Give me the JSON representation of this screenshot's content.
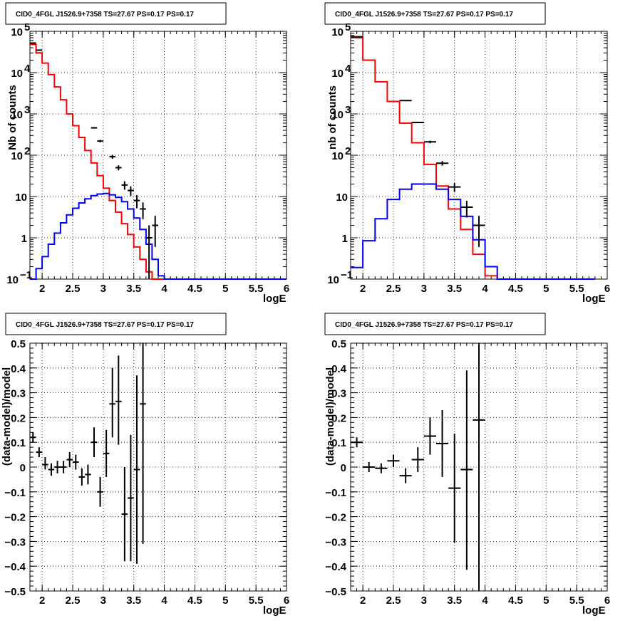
{
  "chart_data": [
    {
      "type": "line",
      "title": "CID0_4FGL J1526.9+7358 TS=27.67 PS=0.17 PS=0.17",
      "xlabel": "logE",
      "ylabel": "Nb of counts",
      "xlim": [
        1.8,
        6.0
      ],
      "ylim": [
        0.1,
        100000
      ],
      "yscale": "log",
      "grid": true,
      "x_ticks": [
        2,
        2.5,
        3,
        3.5,
        4,
        4.5,
        5,
        5.5,
        6
      ],
      "x_tick_labels": [
        "2",
        "2.5",
        "3",
        "3.5",
        "4",
        "4.5",
        "5",
        "5.5",
        "6"
      ],
      "y_ticks": [
        0.1,
        1,
        10,
        100,
        1000,
        10000,
        100000
      ],
      "y_tick_labels": [
        [
          "10",
          "−1"
        ],
        [
          "1",
          ""
        ],
        [
          "10",
          ""
        ],
        [
          "10",
          "2"
        ],
        [
          "10",
          "3"
        ],
        [
          "10",
          "4"
        ],
        [
          "10",
          "5"
        ]
      ],
      "bin_edges": [
        1.8,
        1.9,
        2.0,
        2.1,
        2.2,
        2.3,
        2.4,
        2.5,
        2.6,
        2.7,
        2.8,
        2.9,
        3.0,
        3.1,
        3.2,
        3.3,
        3.4,
        3.5,
        3.6,
        3.7,
        3.8,
        3.9,
        4.0,
        4.1,
        4.2,
        4.3,
        4.4,
        4.5,
        4.6,
        4.7,
        4.8,
        4.9,
        5.0,
        5.1,
        5.2,
        5.3,
        5.4,
        5.5,
        5.6,
        5.7,
        5.8,
        5.9,
        6.0
      ],
      "series": [
        {
          "kind": "model-total",
          "color": "#ff0000",
          "values": [
            48000,
            30000,
            17000,
            9000,
            4500,
            2200,
            1000,
            520,
            270,
            130,
            65,
            32,
            16,
            8,
            4.2,
            2.2,
            1.2,
            0.6,
            0.3,
            0.15,
            0.1,
            0.1,
            0.1,
            0.1,
            0.1,
            0.1,
            0.1,
            0.1,
            0.1,
            0.1,
            0.1,
            0.1,
            0.1,
            0.1,
            0.1,
            0.1,
            0.1,
            0.1,
            0.1,
            0.1,
            0.1,
            0.1
          ]
        },
        {
          "kind": "model-source",
          "color": "#0000ff",
          "values": [
            0.1,
            0.18,
            0.35,
            0.7,
            1.3,
            2.3,
            3.6,
            5.2,
            7.0,
            8.8,
            10.5,
            11.5,
            11.8,
            11,
            9.5,
            7.5,
            5.0,
            3.0,
            1.6,
            0.7,
            0.3,
            0.12,
            0.1,
            0.1,
            0.1,
            0.1,
            0.1,
            0.1,
            0.1,
            0.1,
            0.1,
            0.1,
            0.1,
            0.1,
            0.1,
            0.1,
            0.1,
            0.1,
            0.1,
            0.1,
            0.1,
            0.1
          ]
        },
        {
          "kind": "data",
          "color": "#000000",
          "points": [
            {
              "x": 1.85,
              "y": 52000,
              "err": 230
            },
            {
              "x": 1.95,
              "y": 35000,
              "err": 190
            },
            {
              "x": 2.85,
              "y": 460,
              "err": 21
            },
            {
              "x": 2.95,
              "y": 220,
              "err": 15
            },
            {
              "x": 3.15,
              "y": 92,
              "err": 10
            },
            {
              "x": 3.25,
              "y": 50,
              "err": 7
            },
            {
              "x": 3.35,
              "y": 19,
              "err": 4.4
            },
            {
              "x": 3.45,
              "y": 14,
              "err": 3.7
            },
            {
              "x": 3.55,
              "y": 8,
              "err": 2.8
            },
            {
              "x": 3.65,
              "y": 5,
              "err": 2.2
            },
            {
              "x": 3.75,
              "y": 1,
              "err": 1.0
            },
            {
              "x": 3.85,
              "y": 2,
              "err": 1.4
            }
          ]
        }
      ]
    },
    {
      "type": "line",
      "title": "CID0_4FGL J1526.9+7358 TS=27.67 PS=0.17 PS=0.17",
      "xlabel": "logE",
      "ylabel": "nb of counts",
      "xlim": [
        1.8,
        6.0
      ],
      "ylim": [
        0.1,
        100000
      ],
      "yscale": "log",
      "grid": true,
      "x_ticks": [
        2,
        2.5,
        3,
        3.5,
        4,
        4.5,
        5,
        5.5,
        6
      ],
      "x_tick_labels": [
        "2",
        "2.5",
        "3",
        "3.5",
        "4",
        "4.5",
        "5",
        "5.5",
        "6"
      ],
      "y_ticks": [
        0.1,
        1,
        10,
        100,
        1000,
        10000,
        100000
      ],
      "y_tick_labels": [
        [
          "10",
          "−1"
        ],
        [
          "1",
          ""
        ],
        [
          "10",
          ""
        ],
        [
          "10",
          "2"
        ],
        [
          "10",
          "3"
        ],
        [
          "10",
          "4"
        ],
        [
          "10",
          "5"
        ]
      ],
      "bin_edges": [
        1.8,
        2.0,
        2.2,
        2.4,
        2.6,
        2.8,
        3.0,
        3.2,
        3.4,
        3.6,
        3.8,
        4.0,
        4.2,
        4.4,
        4.6,
        4.8,
        5.0,
        5.2,
        5.4,
        5.6,
        5.8,
        6.0
      ],
      "series": [
        {
          "kind": "model-total",
          "color": "#ff0000",
          "values": [
            70000,
            20000,
            6000,
            2000,
            600,
            200,
            60,
            18,
            5,
            1.6,
            0.4,
            0.12,
            0.1,
            0.1,
            0.1,
            0.1,
            0.1,
            0.1,
            0.1,
            0.1
          ]
        },
        {
          "kind": "model-source",
          "color": "#0000ff",
          "values": [
            0.19,
            0.85,
            2.9,
            8.5,
            15,
            20,
            20,
            15,
            8.5,
            3.3,
            0.9,
            0.2,
            0.1,
            0.1,
            0.1,
            0.1,
            0.1,
            0.1,
            0.1,
            0.1
          ]
        },
        {
          "kind": "data",
          "color": "#000000",
          "points": [
            {
              "x": 1.9,
              "y": 74000,
              "err": 270
            },
            {
              "x": 2.7,
              "y": 2100,
              "err": 46
            },
            {
              "x": 2.9,
              "y": 620,
              "err": 25
            },
            {
              "x": 3.1,
              "y": 210,
              "err": 15
            },
            {
              "x": 3.3,
              "y": 64,
              "err": 8
            },
            {
              "x": 3.5,
              "y": 17,
              "err": 4.1
            },
            {
              "x": 3.7,
              "y": 5.5,
              "err": 2.4
            },
            {
              "x": 3.9,
              "y": 2,
              "err": 1.4
            }
          ]
        }
      ]
    },
    {
      "type": "scatter",
      "title": "CID0_4FGL J1526.9+7358 TS=27.67 PS=0.17 PS=0.17",
      "xlabel": "logE",
      "ylabel": "(data-model)/model",
      "xlim": [
        1.8,
        6.0
      ],
      "ylim": [
        -0.5,
        0.5
      ],
      "grid": true,
      "x_ticks": [
        2,
        2.5,
        3,
        3.5,
        4,
        4.5,
        5,
        5.5,
        6
      ],
      "x_tick_labels": [
        "2",
        "2.5",
        "3",
        "3.5",
        "4",
        "4.5",
        "5",
        "5.5",
        "6"
      ],
      "y_ticks": [
        -0.5,
        -0.4,
        -0.3,
        -0.2,
        -0.1,
        0,
        0.1,
        0.2,
        0.3,
        0.4,
        0.5
      ],
      "y_tick_labels": [
        "−0.5",
        "−0.4",
        "−0.3",
        "−0.2",
        "−0.1",
        "0",
        "0.1",
        "0.2",
        "0.3",
        "0.4",
        "0.5"
      ],
      "points": [
        {
          "x": 1.85,
          "y": 0.12,
          "ylo": 0.1,
          "yhi": 0.14,
          "xerr": 0.05
        },
        {
          "x": 1.95,
          "y": 0.06,
          "ylo": 0.04,
          "yhi": 0.08,
          "xerr": 0.05
        },
        {
          "x": 2.05,
          "y": 0.01,
          "ylo": -0.01,
          "yhi": 0.04,
          "xerr": 0.05
        },
        {
          "x": 2.15,
          "y": -0.01,
          "ylo": -0.035,
          "yhi": 0.015,
          "xerr": 0.05
        },
        {
          "x": 2.25,
          "y": 0.0,
          "ylo": -0.025,
          "yhi": 0.025,
          "xerr": 0.05
        },
        {
          "x": 2.35,
          "y": 0.0,
          "ylo": -0.025,
          "yhi": 0.025,
          "xerr": 0.05
        },
        {
          "x": 2.45,
          "y": 0.03,
          "ylo": 0.0,
          "yhi": 0.06,
          "xerr": 0.05
        },
        {
          "x": 2.55,
          "y": 0.02,
          "ylo": -0.01,
          "yhi": 0.05,
          "xerr": 0.05
        },
        {
          "x": 2.65,
          "y": -0.04,
          "ylo": -0.075,
          "yhi": -0.005,
          "xerr": 0.05
        },
        {
          "x": 2.75,
          "y": -0.03,
          "ylo": -0.07,
          "yhi": 0.01,
          "xerr": 0.05
        },
        {
          "x": 2.85,
          "y": 0.1,
          "ylo": 0.04,
          "yhi": 0.16,
          "xerr": 0.05
        },
        {
          "x": 2.95,
          "y": -0.1,
          "ylo": -0.16,
          "yhi": -0.04,
          "xerr": 0.05
        },
        {
          "x": 3.05,
          "y": 0.055,
          "ylo": -0.04,
          "yhi": 0.15,
          "xerr": 0.05
        },
        {
          "x": 3.15,
          "y": 0.255,
          "ylo": 0.12,
          "yhi": 0.4,
          "xerr": 0.05
        },
        {
          "x": 3.25,
          "y": 0.265,
          "ylo": 0.09,
          "yhi": 0.45,
          "xerr": 0.05
        },
        {
          "x": 3.35,
          "y": -0.19,
          "ylo": -0.38,
          "yhi": 0.0,
          "xerr": 0.05
        },
        {
          "x": 3.45,
          "y": -0.125,
          "ylo": -0.38,
          "yhi": 0.13,
          "xerr": 0.05
        },
        {
          "x": 3.55,
          "y": -0.01,
          "ylo": -0.39,
          "yhi": 0.37,
          "xerr": 0.05
        },
        {
          "x": 3.65,
          "y": 0.255,
          "ylo": -0.31,
          "yhi": 0.5,
          "xerr": 0.05
        }
      ]
    },
    {
      "type": "scatter",
      "title": "CID0_4FGL J1526.9+7358 TS=27.67 PS=0.17 PS=0.17",
      "xlabel": "logE",
      "ylabel": "(data-model)/model",
      "xlim": [
        1.8,
        6.0
      ],
      "ylim": [
        -0.5,
        0.5
      ],
      "grid": true,
      "x_ticks": [
        2,
        2.5,
        3,
        3.5,
        4,
        4.5,
        5,
        5.5,
        6
      ],
      "x_tick_labels": [
        "2",
        "2.5",
        "3",
        "3.5",
        "4",
        "4.5",
        "5",
        "5.5",
        "6"
      ],
      "y_ticks": [
        -0.5,
        -0.4,
        -0.3,
        -0.2,
        -0.1,
        0,
        0.1,
        0.2,
        0.3,
        0.4,
        0.5
      ],
      "y_tick_labels": [
        "−0.5",
        "−0.4",
        "−0.3",
        "−0.2",
        "−0.1",
        "0",
        "0.1",
        "0.2",
        "0.3",
        "0.4",
        "0.5"
      ],
      "points": [
        {
          "x": 1.9,
          "y": 0.1,
          "ylo": 0.08,
          "yhi": 0.12,
          "xerr": 0.1
        },
        {
          "x": 2.1,
          "y": 0.0,
          "ylo": -0.02,
          "yhi": 0.02,
          "xerr": 0.1
        },
        {
          "x": 2.3,
          "y": -0.005,
          "ylo": -0.025,
          "yhi": 0.015,
          "xerr": 0.1
        },
        {
          "x": 2.5,
          "y": 0.025,
          "ylo": 0.0,
          "yhi": 0.05,
          "xerr": 0.1
        },
        {
          "x": 2.7,
          "y": -0.035,
          "ylo": -0.065,
          "yhi": -0.005,
          "xerr": 0.1
        },
        {
          "x": 2.9,
          "y": 0.03,
          "ylo": -0.02,
          "yhi": 0.08,
          "xerr": 0.1
        },
        {
          "x": 3.1,
          "y": 0.125,
          "ylo": 0.05,
          "yhi": 0.2,
          "xerr": 0.1
        },
        {
          "x": 3.3,
          "y": 0.095,
          "ylo": -0.04,
          "yhi": 0.23,
          "xerr": 0.1
        },
        {
          "x": 3.5,
          "y": -0.085,
          "ylo": -0.305,
          "yhi": 0.135,
          "xerr": 0.1
        },
        {
          "x": 3.7,
          "y": -0.01,
          "ylo": -0.415,
          "yhi": 0.39,
          "xerr": 0.1
        },
        {
          "x": 3.9,
          "y": 0.19,
          "ylo": -0.5,
          "yhi": 0.5,
          "xerr": 0.1
        }
      ]
    }
  ]
}
